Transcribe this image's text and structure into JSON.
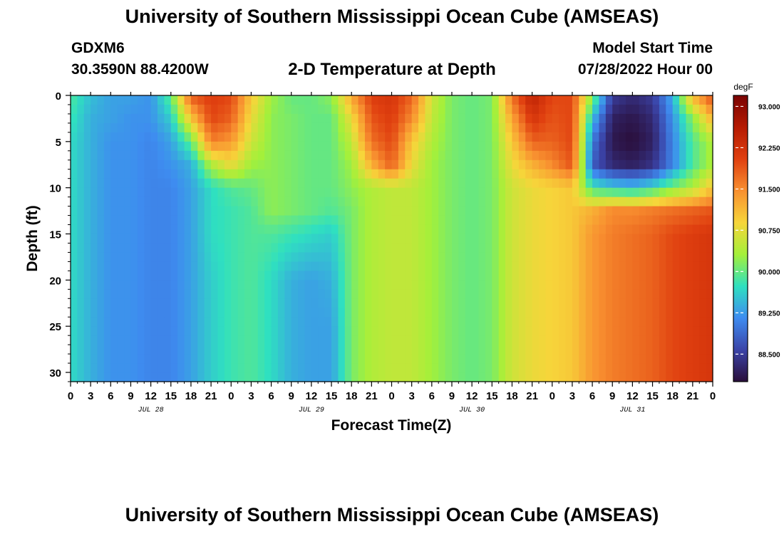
{
  "header": {
    "title": "University of Southern Mississippi Ocean Cube (AMSEAS)",
    "station_id": "GDXM6",
    "location": "30.3590N  88.4200W",
    "plot_title": "2-D Temperature at Depth",
    "model_start_label": "Model Start Time",
    "model_start_value": "07/28/2022 Hour 00"
  },
  "footer": {
    "title": "University of Southern Mississippi Ocean Cube (AMSEAS)"
  },
  "chart_data": {
    "type": "heatmap",
    "xlabel": "Forecast Time(Z)",
    "ylabel": "Depth (ft)",
    "x_range_hours": [
      0,
      96
    ],
    "y_range_ft": [
      0,
      31
    ],
    "y_inverted": true,
    "x_tick_labels": [
      "0",
      "3",
      "6",
      "9",
      "12",
      "15",
      "18",
      "21",
      "0",
      "3",
      "6",
      "9",
      "12",
      "15",
      "18",
      "21",
      "0",
      "3",
      "6",
      "9",
      "12",
      "15",
      "18",
      "21",
      "0",
      "3",
      "6",
      "9",
      "12",
      "15",
      "18",
      "21",
      "0"
    ],
    "y_ticks": [
      0,
      5,
      10,
      15,
      20,
      25,
      30
    ],
    "day_labels": [
      {
        "hour": 12,
        "label": "JUL 28"
      },
      {
        "hour": 36,
        "label": "JUL 29"
      },
      {
        "hour": 60,
        "label": "JUL 30"
      },
      {
        "hour": 84,
        "label": "JUL 31"
      }
    ],
    "colorbar": {
      "unit": "degF",
      "range": [
        88.0,
        93.2
      ],
      "ticks": [
        "93.000",
        "92.250",
        "91.500",
        "90.750",
        "90.000",
        "89.250",
        "88.500"
      ],
      "tick_values": [
        93.0,
        92.25,
        91.5,
        90.75,
        90.0,
        89.25,
        88.5
      ],
      "colors": [
        "#2a0e3a",
        "#3b44a8",
        "#3e8cf0",
        "#2fe0c0",
        "#a4f03a",
        "#f7d53a",
        "#f89030",
        "#e04010",
        "#b51a02",
        "#7a0403"
      ]
    },
    "depth_levels_ft": [
      0,
      2.5,
      5,
      7.5,
      10,
      12.5,
      15,
      20,
      25,
      31
    ],
    "profile_hours": [
      0,
      3,
      6,
      9,
      12,
      15,
      18,
      21,
      24,
      27,
      30,
      33,
      36,
      39,
      42,
      45,
      48,
      51,
      54,
      57,
      60,
      63,
      66,
      69,
      72,
      75,
      78,
      81,
      84,
      87,
      90,
      93,
      96
    ],
    "temperature_degF": [
      [
        89.9,
        89.8,
        89.7,
        89.7,
        89.7,
        89.7,
        89.7,
        89.7,
        89.7,
        89.7
      ],
      [
        89.5,
        89.4,
        89.4,
        89.4,
        89.4,
        89.4,
        89.4,
        89.4,
        89.4,
        89.4
      ],
      [
        89.3,
        89.3,
        89.2,
        89.2,
        89.2,
        89.2,
        89.2,
        89.2,
        89.2,
        89.2
      ],
      [
        89.3,
        89.2,
        89.2,
        89.2,
        89.2,
        89.2,
        89.2,
        89.2,
        89.2,
        89.2
      ],
      [
        89.2,
        89.2,
        89.1,
        89.1,
        89.1,
        89.1,
        89.1,
        89.1,
        89.1,
        89.1
      ],
      [
        90.0,
        89.6,
        89.3,
        89.2,
        89.1,
        89.1,
        89.1,
        89.1,
        89.1,
        89.1
      ],
      [
        91.9,
        91.0,
        90.0,
        89.4,
        89.3,
        89.3,
        89.3,
        89.3,
        89.3,
        89.3
      ],
      [
        92.1,
        92.0,
        91.6,
        90.4,
        89.7,
        89.7,
        89.7,
        89.6,
        89.6,
        89.6
      ],
      [
        92.0,
        91.8,
        91.4,
        90.8,
        89.9,
        89.8,
        89.8,
        89.8,
        89.8,
        89.8
      ],
      [
        91.0,
        90.8,
        90.6,
        90.3,
        90.0,
        89.9,
        89.9,
        89.9,
        89.9,
        89.9
      ],
      [
        90.3,
        90.2,
        90.2,
        90.2,
        90.2,
        90.2,
        89.9,
        89.7,
        89.7,
        89.7
      ],
      [
        90.0,
        90.1,
        90.1,
        90.1,
        90.1,
        90.1,
        89.8,
        89.4,
        89.4,
        89.4
      ],
      [
        90.0,
        90.0,
        90.0,
        90.0,
        90.0,
        90.0,
        89.7,
        89.3,
        89.3,
        89.3
      ],
      [
        90.2,
        90.0,
        90.0,
        90.0,
        90.0,
        89.9,
        89.6,
        89.4,
        89.3,
        89.3
      ],
      [
        91.3,
        90.8,
        90.5,
        90.3,
        90.2,
        90.1,
        90.1,
        90.1,
        90.1,
        90.1
      ],
      [
        92.1,
        91.9,
        91.7,
        91.2,
        90.4,
        90.4,
        90.4,
        90.4,
        90.4,
        90.4
      ],
      [
        92.2,
        92.1,
        92.0,
        91.8,
        90.5,
        90.5,
        90.5,
        90.5,
        90.5,
        90.5
      ],
      [
        91.8,
        91.5,
        91.0,
        90.8,
        90.5,
        90.5,
        90.5,
        90.5,
        90.5,
        90.5
      ],
      [
        90.6,
        90.5,
        90.4,
        90.3,
        90.3,
        90.3,
        90.3,
        90.3,
        90.3,
        90.3
      ],
      [
        90.1,
        90.1,
        90.1,
        90.1,
        90.1,
        90.1,
        90.1,
        90.1,
        90.1,
        90.1
      ],
      [
        90.0,
        90.0,
        90.0,
        90.0,
        90.0,
        90.0,
        90.0,
        90.0,
        90.0,
        90.0
      ],
      [
        90.1,
        90.1,
        90.1,
        90.1,
        90.1,
        90.1,
        90.1,
        90.1,
        90.1,
        90.1
      ],
      [
        91.7,
        91.3,
        91.0,
        90.8,
        90.6,
        90.6,
        90.6,
        90.6,
        90.6,
        90.6
      ],
      [
        92.5,
        92.2,
        91.8,
        91.2,
        90.8,
        90.8,
        90.8,
        90.8,
        90.8,
        90.8
      ],
      [
        92.0,
        91.9,
        91.8,
        91.5,
        90.9,
        90.9,
        90.9,
        90.9,
        90.9,
        90.9
      ],
      [
        92.0,
        92.0,
        92.0,
        91.9,
        91.0,
        91.0,
        91.0,
        91.0,
        91.0,
        91.0
      ],
      [
        90.2,
        89.5,
        89.0,
        88.8,
        89.8,
        91.2,
        91.4,
        91.4,
        91.4,
        91.4
      ],
      [
        88.5,
        88.2,
        88.1,
        88.3,
        89.6,
        91.5,
        91.6,
        91.6,
        91.6,
        91.6
      ],
      [
        88.3,
        88.1,
        88.0,
        88.2,
        89.5,
        91.5,
        91.7,
        91.7,
        91.7,
        91.7
      ],
      [
        88.5,
        88.3,
        88.2,
        88.4,
        89.7,
        91.6,
        91.8,
        91.8,
        91.8,
        91.8
      ],
      [
        89.4,
        89.2,
        89.1,
        89.1,
        90.1,
        91.7,
        92.0,
        92.0,
        92.0,
        92.0
      ],
      [
        91.2,
        90.2,
        89.9,
        89.9,
        90.4,
        91.8,
        92.1,
        92.1,
        92.1,
        92.1
      ],
      [
        92.0,
        91.2,
        90.4,
        90.4,
        91.0,
        91.9,
        92.2,
        92.2,
        92.2,
        92.2
      ]
    ]
  }
}
